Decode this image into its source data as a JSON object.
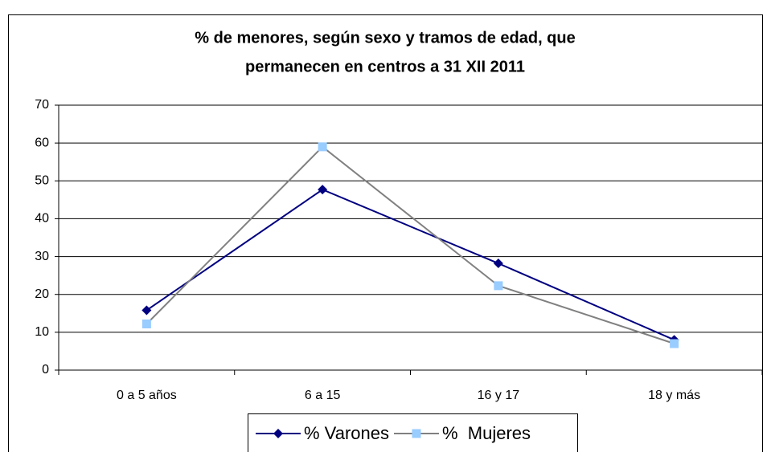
{
  "chart_data": {
    "type": "line",
    "title": [
      "% de menores, según sexo y tramos de edad, que",
      "permanecen en centros a 31 XII 2011"
    ],
    "categories": [
      "0 a 5 años",
      "6 a 15",
      "16 y 17",
      "18 y más"
    ],
    "series": [
      {
        "name": "% Varones",
        "color": "#000080",
        "marker": "diamond",
        "marker_color": "#000080",
        "values": [
          15.8,
          47.7,
          28.2,
          8.0
        ]
      },
      {
        "name": "%  Mujeres",
        "color": "#808080",
        "marker": "square",
        "marker_color": "#99ccff",
        "values": [
          12.2,
          59.0,
          22.3,
          7.0
        ]
      }
    ],
    "ylim": [
      0,
      70
    ],
    "yticks": [
      0,
      10,
      20,
      30,
      40,
      50,
      60,
      70
    ],
    "grid": true,
    "legend": "bottom"
  }
}
